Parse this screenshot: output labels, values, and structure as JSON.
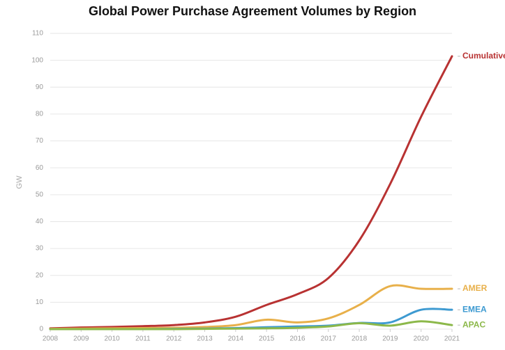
{
  "chart_data": {
    "type": "line",
    "title": "Global Power Purchase Agreement Volumes by Region",
    "y_label": "GW",
    "x": [
      2008,
      2009,
      2010,
      2011,
      2012,
      2013,
      2014,
      2015,
      2016,
      2017,
      2018,
      2019,
      2020,
      2021
    ],
    "xlim": [
      2008,
      2021
    ],
    "xticks": [
      2008,
      2009,
      2010,
      2011,
      2012,
      2013,
      2014,
      2015,
      2016,
      2017,
      2018,
      2019,
      2020,
      2021
    ],
    "ylim": [
      0,
      110
    ],
    "yticks": [
      0,
      10,
      20,
      30,
      40,
      50,
      60,
      70,
      80,
      90,
      100,
      110
    ],
    "grid": true,
    "series": [
      {
        "name": "Cumulative",
        "color": "#b83232",
        "values": [
          0.3,
          0.6,
          0.8,
          1.1,
          1.5,
          2.5,
          4.6,
          9,
          13,
          19,
          33,
          54,
          79,
          101.5
        ]
      },
      {
        "name": "AMER",
        "color": "#e8b04a",
        "values": [
          0.1,
          0.2,
          0.3,
          0.4,
          0.5,
          0.8,
          1.5,
          3.5,
          2.5,
          4,
          9,
          16,
          15,
          15
        ]
      },
      {
        "name": "EMEA",
        "color": "#3d9ad1",
        "values": [
          0,
          0,
          0,
          0,
          0.1,
          0.2,
          0.4,
          0.7,
          1.0,
          1.3,
          2.3,
          2.5,
          7.2,
          7.2
        ]
      },
      {
        "name": "APAC",
        "color": "#8cb84a",
        "values": [
          0,
          0,
          0,
          0,
          0,
          0.1,
          0.2,
          0.3,
          0.5,
          1,
          2.2,
          1.3,
          2.9,
          1.5
        ]
      }
    ]
  }
}
